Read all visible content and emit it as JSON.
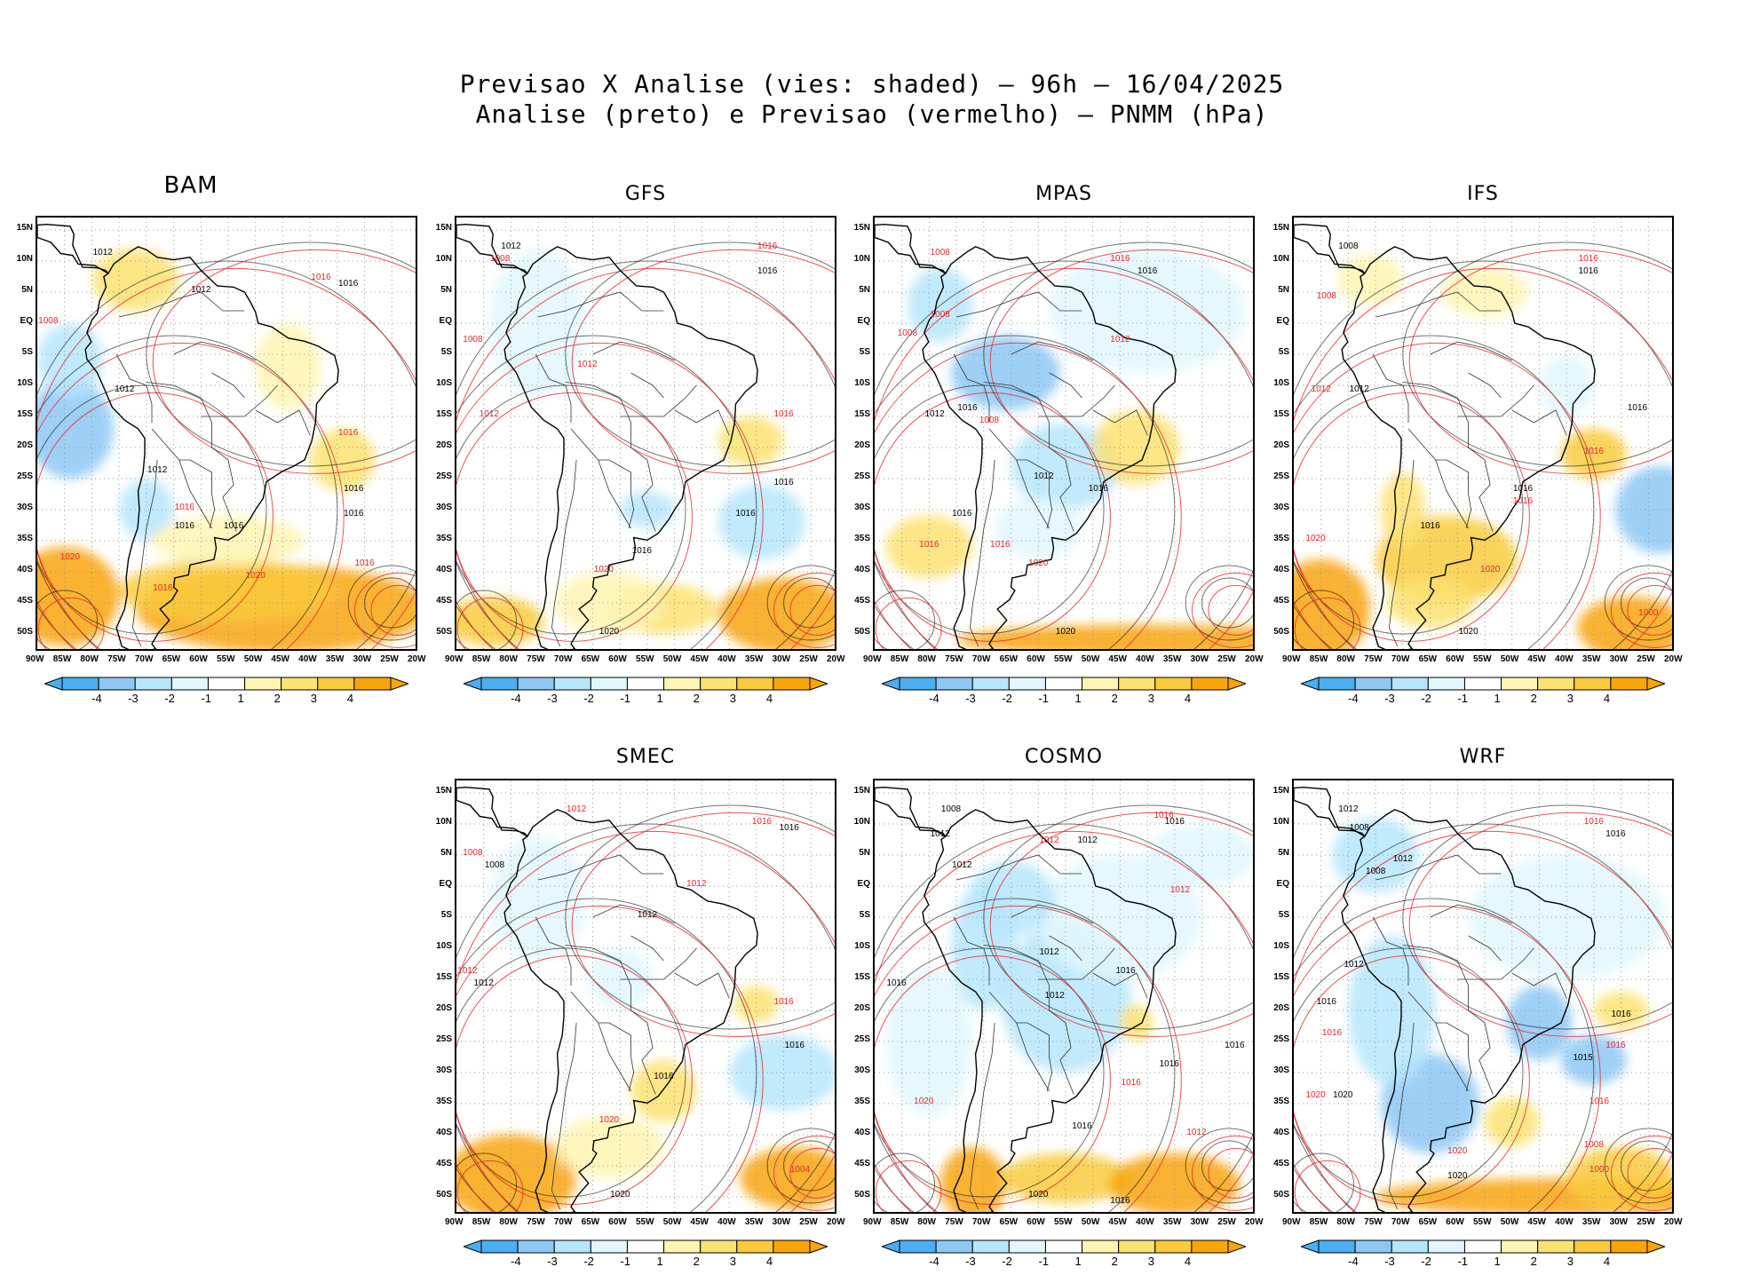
{
  "title_line1": "Previsao X Analise (vies: shaded) – 96h – 16/04/2025",
  "title_line2": "Analise (preto) e Previsao (vermelho) – PNMM (hPa)",
  "colors": {
    "neg4": "#4aaef0",
    "neg3": "#8dc8f5",
    "neg2": "#b6e6fb",
    "neg1": "#e2f7fd",
    "zero": "#ffffff",
    "pos1": "#fff5b3",
    "pos2": "#fde272",
    "pos3": "#f9cb3c",
    "pos4": "#f8a50a",
    "analysis_contour": "#000000",
    "forecast_contour": "#e8262a"
  },
  "lat_ticks": [
    "15N",
    "10N",
    "5N",
    "EQ",
    "5S",
    "10S",
    "15S",
    "20S",
    "25S",
    "30S",
    "35S",
    "40S",
    "45S",
    "50S"
  ],
  "lon_ticks": [
    "90W",
    "85W",
    "80W",
    "75W",
    "70W",
    "65W",
    "60W",
    "55W",
    "50W",
    "45W",
    "40W",
    "35W",
    "30W",
    "25W",
    "20W"
  ],
  "colorbar_labels": [
    "-4",
    "-3",
    "-2",
    "-1",
    "1",
    "2",
    "3",
    "4"
  ],
  "panels": [
    {
      "name": "BAM",
      "row": 0,
      "col": 0,
      "big": true,
      "labels": [
        {
          "t": "1012",
          "c": "b",
          "x": -78,
          "y": 11
        },
        {
          "t": "1016",
          "c": "r",
          "x": -38,
          "y": 7
        },
        {
          "t": "1016",
          "c": "b",
          "x": -33,
          "y": 6
        },
        {
          "t": "1008",
          "c": "r",
          "x": -88,
          "y": 0
        },
        {
          "t": "1012",
          "c": "b",
          "x": -60,
          "y": 5
        },
        {
          "t": "1012",
          "c": "b",
          "x": -74,
          "y": -11
        },
        {
          "t": "1016",
          "c": "r",
          "x": -33,
          "y": -18
        },
        {
          "t": "1016",
          "c": "b",
          "x": -32,
          "y": -27
        },
        {
          "t": "1016",
          "c": "b",
          "x": -32,
          "y": -31
        },
        {
          "t": "1012",
          "c": "b",
          "x": -68,
          "y": -24
        },
        {
          "t": "1016",
          "c": "r",
          "x": -63,
          "y": -30
        },
        {
          "t": "1016",
          "c": "b",
          "x": -63,
          "y": -33
        },
        {
          "t": "1016",
          "c": "b",
          "x": -54,
          "y": -33
        },
        {
          "t": "1020",
          "c": "r",
          "x": -50,
          "y": -41
        },
        {
          "t": "1016",
          "c": "r",
          "x": -30,
          "y": -39
        },
        {
          "t": "1020",
          "c": "r",
          "x": -84,
          "y": -38
        },
        {
          "t": "1016",
          "c": "r",
          "x": -67,
          "y": -43
        }
      ]
    },
    {
      "name": "GFS",
      "row": 0,
      "col": 1,
      "labels": [
        {
          "t": "1012",
          "c": "b",
          "x": -80,
          "y": 12
        },
        {
          "t": "1008",
          "c": "r",
          "x": -82,
          "y": 10
        },
        {
          "t": "1016",
          "c": "r",
          "x": -33,
          "y": 12
        },
        {
          "t": "1016",
          "c": "b",
          "x": -33,
          "y": 8
        },
        {
          "t": "1008",
          "c": "r",
          "x": -87,
          "y": -3
        },
        {
          "t": "1012",
          "c": "r",
          "x": -66,
          "y": -7
        },
        {
          "t": "1012",
          "c": "r",
          "x": -84,
          "y": -15
        },
        {
          "t": "1016",
          "c": "r",
          "x": -30,
          "y": -15
        },
        {
          "t": "1016",
          "c": "b",
          "x": -30,
          "y": -26
        },
        {
          "t": "1016",
          "c": "b",
          "x": -37,
          "y": -31
        },
        {
          "t": "1020",
          "c": "r",
          "x": -63,
          "y": -40
        },
        {
          "t": "1016",
          "c": "b",
          "x": -56,
          "y": -37
        },
        {
          "t": "1020",
          "c": "b",
          "x": -62,
          "y": -50
        }
      ]
    },
    {
      "name": "MPAS",
      "row": 0,
      "col": 2,
      "labels": [
        {
          "t": "1008",
          "c": "r",
          "x": -78,
          "y": 11
        },
        {
          "t": "1016",
          "c": "r",
          "x": -45,
          "y": 10
        },
        {
          "t": "1016",
          "c": "b",
          "x": -40,
          "y": 8
        },
        {
          "t": "1008",
          "c": "r",
          "x": -84,
          "y": -2
        },
        {
          "t": "1008",
          "c": "r",
          "x": -78,
          "y": 1
        },
        {
          "t": "1012",
          "c": "r",
          "x": -45,
          "y": -3
        },
        {
          "t": "1012",
          "c": "b",
          "x": -79,
          "y": -15
        },
        {
          "t": "1016",
          "c": "b",
          "x": -73,
          "y": -14
        },
        {
          "t": "1008",
          "c": "r",
          "x": -69,
          "y": -16
        },
        {
          "t": "1012",
          "c": "b",
          "x": -59,
          "y": -25
        },
        {
          "t": "1016",
          "c": "b",
          "x": -49,
          "y": -27
        },
        {
          "t": "1016",
          "c": "b",
          "x": -74,
          "y": -31
        },
        {
          "t": "1016",
          "c": "r",
          "x": -80,
          "y": -36
        },
        {
          "t": "1016",
          "c": "r",
          "x": -67,
          "y": -36
        },
        {
          "t": "1020",
          "c": "r",
          "x": -60,
          "y": -39
        },
        {
          "t": "1020",
          "c": "b",
          "x": -55,
          "y": -50
        }
      ]
    },
    {
      "name": "IFS",
      "row": 0,
      "col": 3,
      "labels": [
        {
          "t": "1008",
          "c": "b",
          "x": -80,
          "y": 12
        },
        {
          "t": "1016",
          "c": "r",
          "x": -36,
          "y": 10
        },
        {
          "t": "1016",
          "c": "b",
          "x": -36,
          "y": 8
        },
        {
          "t": "1008",
          "c": "r",
          "x": -84,
          "y": 4
        },
        {
          "t": "1012",
          "c": "r",
          "x": -85,
          "y": -11
        },
        {
          "t": "1012",
          "c": "b",
          "x": -78,
          "y": -11
        },
        {
          "t": "1016",
          "c": "b",
          "x": -27,
          "y": -14
        },
        {
          "t": "1016",
          "c": "r",
          "x": -35,
          "y": -21
        },
        {
          "t": "1016",
          "c": "b",
          "x": -48,
          "y": -27
        },
        {
          "t": "1016",
          "c": "r",
          "x": -48,
          "y": -29
        },
        {
          "t": "1016",
          "c": "b",
          "x": -65,
          "y": -33
        },
        {
          "t": "1020",
          "c": "r",
          "x": -86,
          "y": -35
        },
        {
          "t": "1020",
          "c": "r",
          "x": -54,
          "y": -40
        },
        {
          "t": "1020",
          "c": "b",
          "x": -58,
          "y": -50
        },
        {
          "t": "1000",
          "c": "r",
          "x": -25,
          "y": -47
        }
      ]
    },
    {
      "name": "SMEC",
      "row": 1,
      "col": 1,
      "labels": [
        {
          "t": "1012",
          "c": "r",
          "x": -68,
          "y": 12
        },
        {
          "t": "1016",
          "c": "r",
          "x": -34,
          "y": 10
        },
        {
          "t": "1016",
          "c": "b",
          "x": -29,
          "y": 9
        },
        {
          "t": "1008",
          "c": "r",
          "x": -87,
          "y": 5
        },
        {
          "t": "1008",
          "c": "b",
          "x": -83,
          "y": 3
        },
        {
          "t": "1012",
          "c": "r",
          "x": -46,
          "y": 0
        },
        {
          "t": "1012",
          "c": "b",
          "x": -55,
          "y": -5
        },
        {
          "t": "1012",
          "c": "r",
          "x": -88,
          "y": -14
        },
        {
          "t": "1012",
          "c": "b",
          "x": -85,
          "y": -16
        },
        {
          "t": "1016",
          "c": "r",
          "x": -30,
          "y": -19
        },
        {
          "t": "1016",
          "c": "b",
          "x": -28,
          "y": -26
        },
        {
          "t": "1016",
          "c": "b",
          "x": -52,
          "y": -31
        },
        {
          "t": "1020",
          "c": "r",
          "x": -62,
          "y": -38
        },
        {
          "t": "1004",
          "c": "r",
          "x": -27,
          "y": -46
        },
        {
          "t": "1020",
          "c": "b",
          "x": -60,
          "y": -50
        }
      ]
    },
    {
      "name": "COSMO",
      "row": 1,
      "col": 2,
      "labels": [
        {
          "t": "1008",
          "c": "b",
          "x": -76,
          "y": 12
        },
        {
          "t": "1016",
          "c": "r",
          "x": -37,
          "y": 11
        },
        {
          "t": "1016",
          "c": "b",
          "x": -35,
          "y": 10
        },
        {
          "t": "1012",
          "c": "r",
          "x": -58,
          "y": 7
        },
        {
          "t": "1012",
          "c": "b",
          "x": -51,
          "y": 7
        },
        {
          "t": "1012",
          "c": "b",
          "x": -78,
          "y": 8
        },
        {
          "t": "1012",
          "c": "b",
          "x": -74,
          "y": 3
        },
        {
          "t": "1012",
          "c": "r",
          "x": -34,
          "y": -1
        },
        {
          "t": "1016",
          "c": "b",
          "x": -86,
          "y": -16
        },
        {
          "t": "1012",
          "c": "b",
          "x": -58,
          "y": -11
        },
        {
          "t": "1016",
          "c": "b",
          "x": -44,
          "y": -14
        },
        {
          "t": "1012",
          "c": "b",
          "x": -57,
          "y": -18
        },
        {
          "t": "1016",
          "c": "b",
          "x": -24,
          "y": -26
        },
        {
          "t": "1016",
          "c": "b",
          "x": -36,
          "y": -29
        },
        {
          "t": "1020",
          "c": "r",
          "x": -81,
          "y": -35
        },
        {
          "t": "1016",
          "c": "r",
          "x": -43,
          "y": -32
        },
        {
          "t": "1016",
          "c": "b",
          "x": -52,
          "y": -39
        },
        {
          "t": "1012",
          "c": "r",
          "x": -31,
          "y": -40
        },
        {
          "t": "1020",
          "c": "b",
          "x": -60,
          "y": -50
        },
        {
          "t": "1016",
          "c": "b",
          "x": -45,
          "y": -51
        }
      ]
    },
    {
      "name": "WRF",
      "row": 1,
      "col": 3,
      "labels": [
        {
          "t": "1012",
          "c": "b",
          "x": -80,
          "y": 12
        },
        {
          "t": "1008",
          "c": "b",
          "x": -78,
          "y": 9
        },
        {
          "t": "1016",
          "c": "r",
          "x": -35,
          "y": 10
        },
        {
          "t": "1016",
          "c": "b",
          "x": -31,
          "y": 8
        },
        {
          "t": "1012",
          "c": "b",
          "x": -70,
          "y": 4
        },
        {
          "t": "1008",
          "c": "b",
          "x": -75,
          "y": 2
        },
        {
          "t": "1016",
          "c": "b",
          "x": -84,
          "y": -19
        },
        {
          "t": "1012",
          "c": "b",
          "x": -79,
          "y": -13
        },
        {
          "t": "1016",
          "c": "b",
          "x": -30,
          "y": -21
        },
        {
          "t": "1016",
          "c": "r",
          "x": -31,
          "y": -26
        },
        {
          "t": "1016",
          "c": "r",
          "x": -83,
          "y": -24
        },
        {
          "t": "1015",
          "c": "b",
          "x": -37,
          "y": -28
        },
        {
          "t": "1020",
          "c": "r",
          "x": -86,
          "y": -34
        },
        {
          "t": "1020",
          "c": "b",
          "x": -81,
          "y": -34
        },
        {
          "t": "1016",
          "c": "r",
          "x": -34,
          "y": -35
        },
        {
          "t": "1008",
          "c": "r",
          "x": -35,
          "y": -42
        },
        {
          "t": "1000",
          "c": "r",
          "x": -34,
          "y": -46
        },
        {
          "t": "1020",
          "c": "r",
          "x": -60,
          "y": -43
        },
        {
          "t": "1020",
          "c": "b",
          "x": -60,
          "y": -47
        }
      ]
    }
  ]
}
